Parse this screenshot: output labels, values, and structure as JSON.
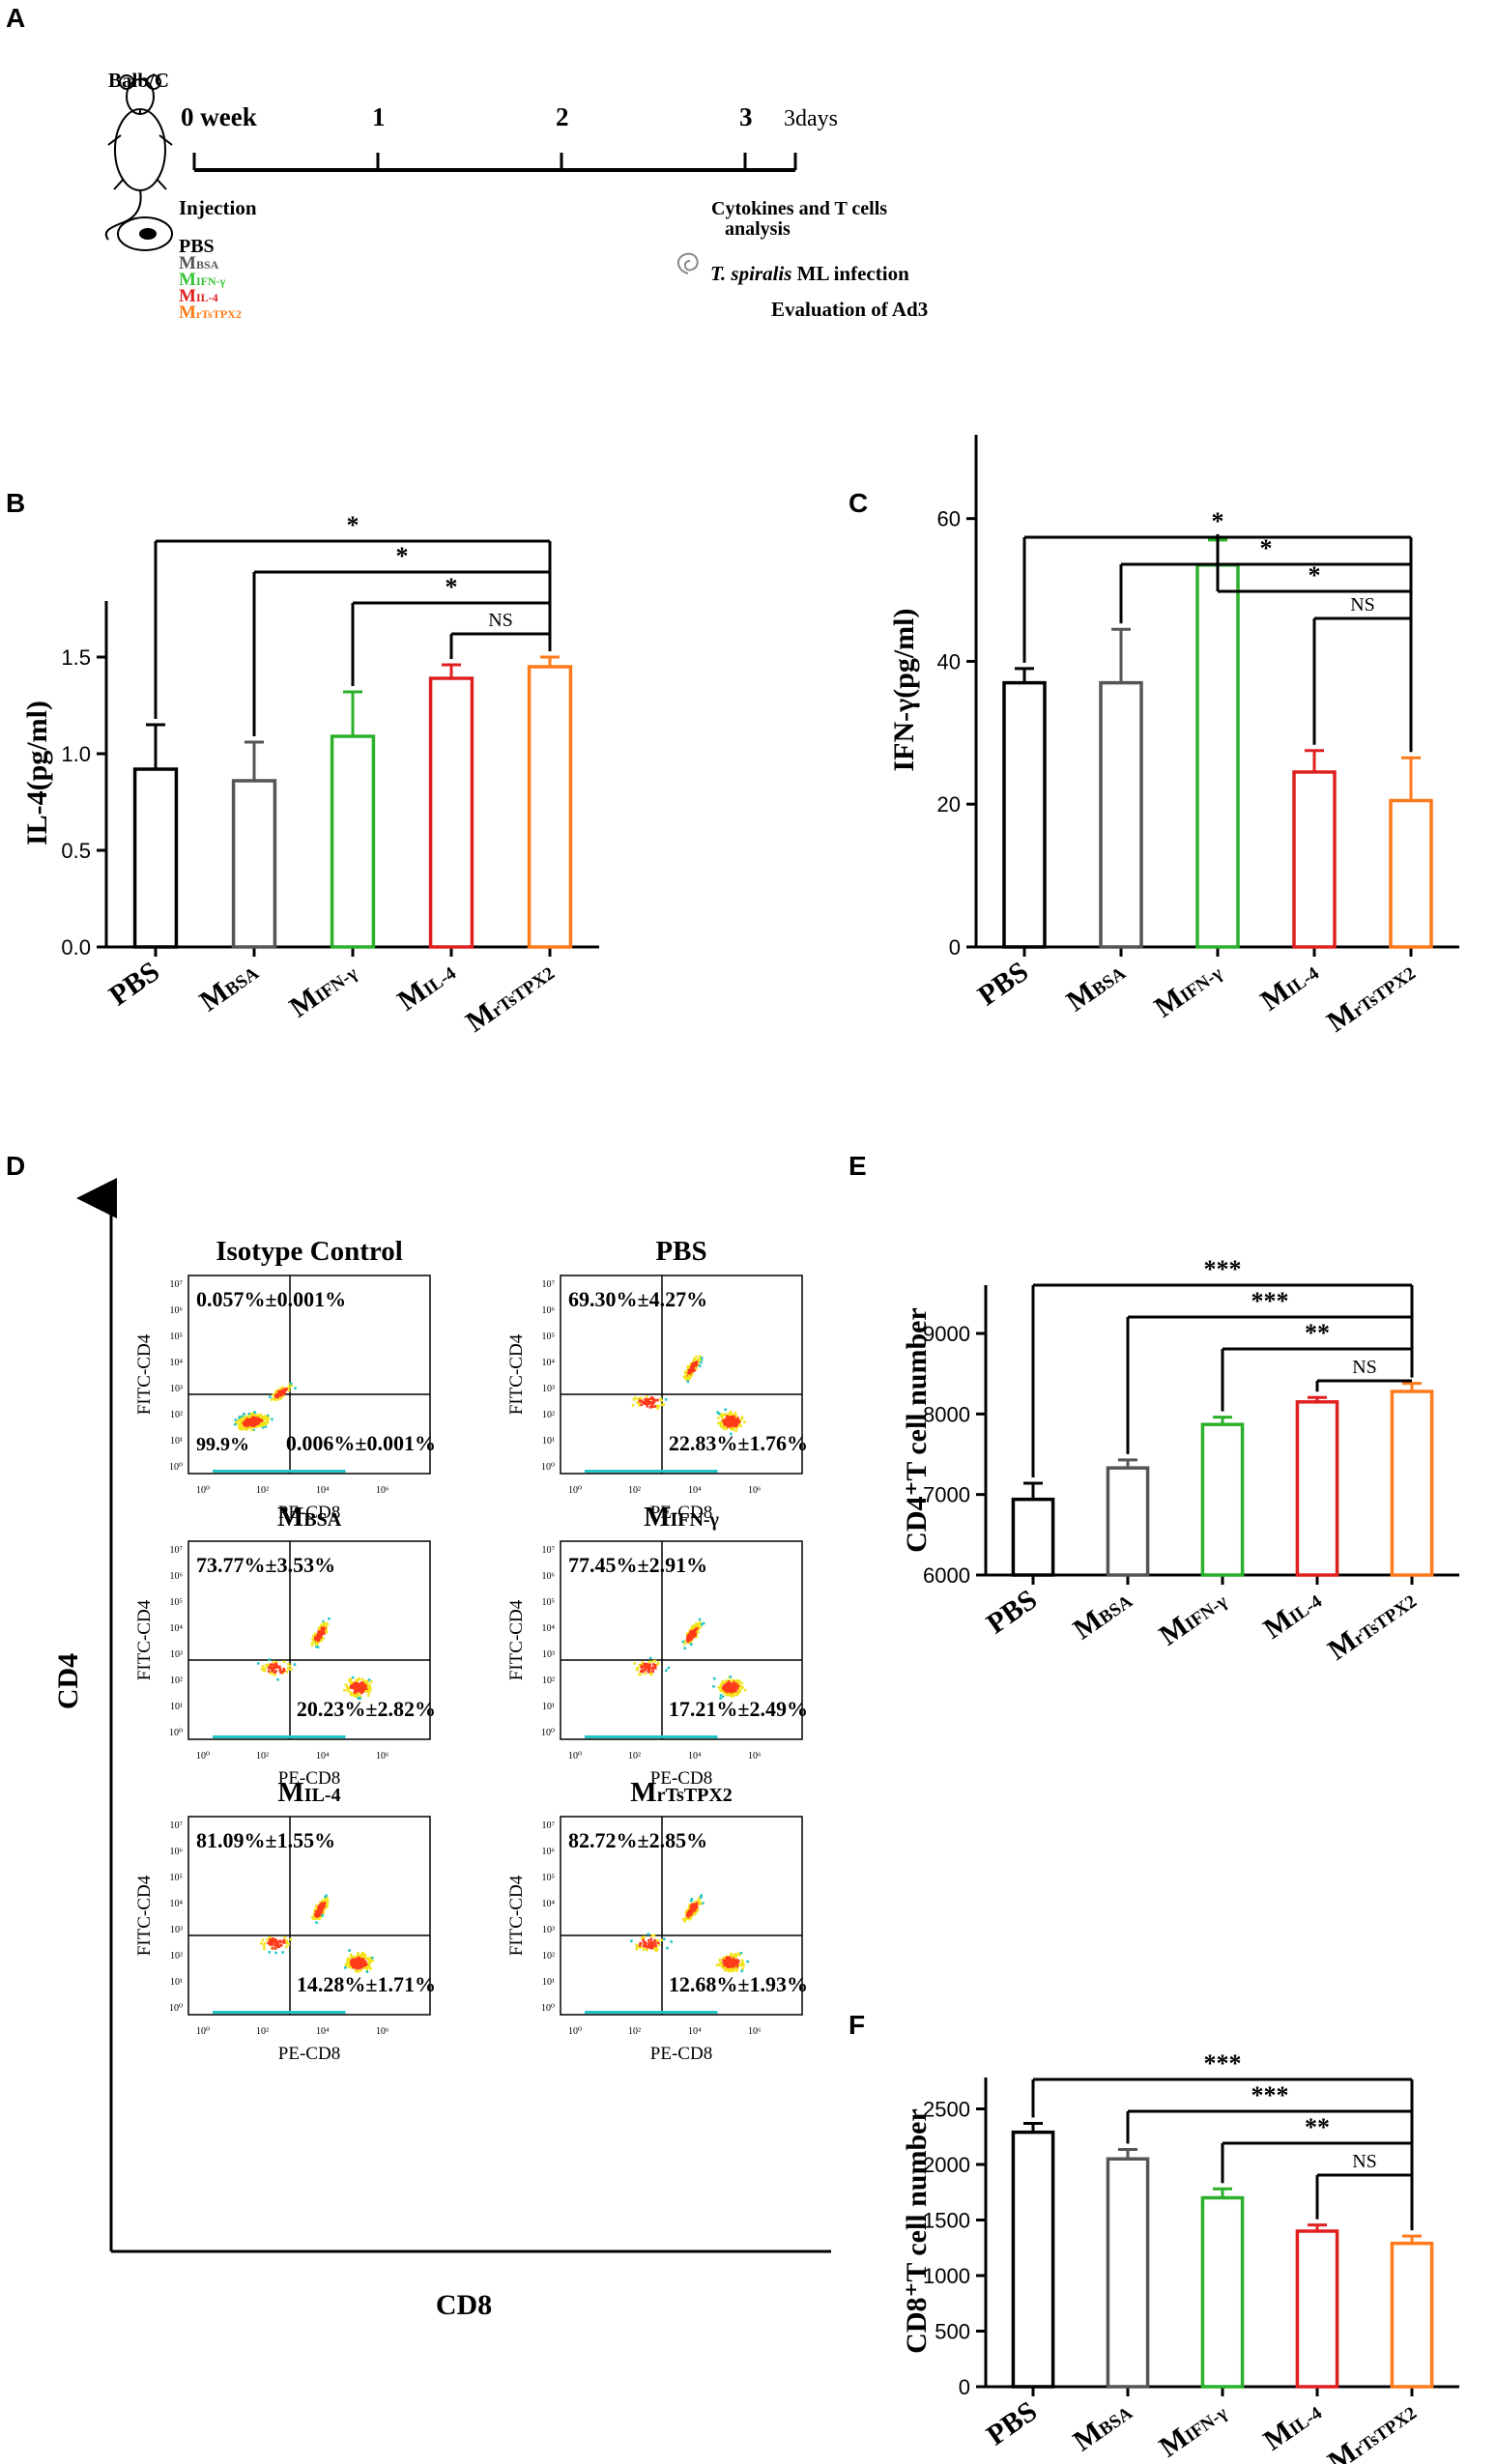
{
  "panel_labels": {
    "a": "A",
    "b": "B",
    "c": "C",
    "d": "D",
    "e": "E",
    "f": "F"
  },
  "colors": {
    "black": "#000000",
    "gray": "#555555",
    "green": "#2bb02b",
    "red": "#e02020",
    "orange": "#ff7a1a",
    "lime": "#35c435",
    "scatter_blue": "#1f2fd6"
  },
  "timeline": {
    "strain": "Balb/C",
    "ticks": [
      {
        "label": "0 week",
        "pos": 0
      },
      {
        "label": "1",
        "pos": 1
      },
      {
        "label": "2",
        "pos": 2
      },
      {
        "label": "3",
        "pos": 3
      },
      {
        "label": "3days",
        "pos": 3.3
      }
    ],
    "injection": "Injection",
    "groups": [
      {
        "prefix": "PBS",
        "sub": "",
        "color": "#000000"
      },
      {
        "prefix": "M",
        "sub": "BSA",
        "color": "#555555"
      },
      {
        "prefix": "M",
        "sub": "IFN-γ",
        "color": "#35c435"
      },
      {
        "prefix": "M",
        "sub": "IL-4",
        "color": "#e02020"
      },
      {
        "prefix": "M",
        "sub": "rTsTPX2",
        "color": "#ff7a1a"
      }
    ],
    "analysis_line1": "Cytokines and T cells",
    "analysis_line2": "analysis",
    "infection_italic": "T. spiralis",
    "infection_rest": " ML infection",
    "evaluation": "Evaluation of Ad3"
  },
  "x_groups": [
    {
      "main": "PBS",
      "sub": ""
    },
    {
      "main": "M",
      "sub": "BSA"
    },
    {
      "main": "M",
      "sub": "IFN-γ"
    },
    {
      "main": "M",
      "sub": "IL-4"
    },
    {
      "main": "M",
      "sub": "rTsTPX2"
    }
  ],
  "chart_data": [
    {
      "id": "B",
      "type": "bar",
      "ylabel": "IL-4(pg/ml)",
      "ylim": [
        0,
        1.8
      ],
      "yticks": [
        "0.0",
        "0.5",
        "1.0",
        "1.5"
      ],
      "values": [
        0.92,
        0.86,
        1.09,
        1.39,
        1.45
      ],
      "errors": [
        0.23,
        0.2,
        0.23,
        0.07,
        0.05
      ],
      "significance": [
        {
          "from": 0,
          "label": "*"
        },
        {
          "from": 1,
          "label": "*"
        },
        {
          "from": 2,
          "label": "*"
        },
        {
          "from": 3,
          "label": "NS"
        }
      ]
    },
    {
      "id": "C",
      "type": "bar",
      "ylabel": "IFN-γ(pg/ml)",
      "ylim": [
        0,
        72
      ],
      "yticks": [
        "0",
        "20",
        "40",
        "60"
      ],
      "values": [
        37,
        37,
        53.5,
        24.5,
        20.5
      ],
      "errors": [
        2,
        7.5,
        3.5,
        3,
        6
      ],
      "significance": [
        {
          "from": 0,
          "label": "*"
        },
        {
          "from": 1,
          "label": "*"
        },
        {
          "from": 2,
          "label": "*"
        },
        {
          "from": 3,
          "label": "NS"
        }
      ]
    },
    {
      "id": "E",
      "type": "bar",
      "ylabel": "CD4⁺T cell number",
      "ylim": [
        6000,
        9600
      ],
      "yticks": [
        "6000",
        "7000",
        "8000",
        "9000"
      ],
      "values": [
        6940,
        7330,
        7870,
        8150,
        8280
      ],
      "errors": [
        200,
        100,
        90,
        55,
        100
      ],
      "significance": [
        {
          "from": 0,
          "label": "***"
        },
        {
          "from": 1,
          "label": "***"
        },
        {
          "from": 2,
          "label": "**"
        },
        {
          "from": 3,
          "label": "NS"
        }
      ]
    },
    {
      "id": "F",
      "type": "bar",
      "ylabel": "CD8⁺T cell number",
      "ylim": [
        0,
        2800
      ],
      "yticks": [
        "0",
        "500",
        "1000",
        "1500",
        "2000",
        "2500"
      ],
      "values": [
        2290,
        2050,
        1700,
        1400,
        1290
      ],
      "errors": [
        80,
        85,
        80,
        55,
        65
      ],
      "significance": [
        {
          "from": 0,
          "label": "***"
        },
        {
          "from": 1,
          "label": "***"
        },
        {
          "from": 2,
          "label": "**"
        },
        {
          "from": 3,
          "label": "NS"
        }
      ]
    }
  ],
  "flow": {
    "y_axis_label": "CD4",
    "x_axis_label": "CD8",
    "x_small": "PE-CD8",
    "y_small": "FITC-CD4",
    "tick_labels": [
      "10⁰",
      "10²",
      "10⁴",
      "10⁶"
    ],
    "y_tick_labels": [
      "10⁰",
      "10¹",
      "10²",
      "10³",
      "10⁴",
      "10⁵",
      "10⁶",
      "10⁷"
    ],
    "plots": [
      {
        "title_main": "Isotype Control",
        "title_sub": "",
        "ul": "0.057%±0.001%",
        "ll": "99.9%",
        "lr": "0.006%±0.001%"
      },
      {
        "title_main": "PBS",
        "title_sub": "",
        "ul": "69.30%±4.27%",
        "ll": "",
        "lr": "22.83%±1.76%"
      },
      {
        "title_main": "M",
        "title_sub": "BSA",
        "ul": "73.77%±3.53%",
        "ll": "",
        "lr": "20.23%±2.82%"
      },
      {
        "title_main": "M",
        "title_sub": "IFN-γ",
        "ul": "77.45%±2.91%",
        "ll": "",
        "lr": "17.21%±2.49%"
      },
      {
        "title_main": "M",
        "title_sub": "IL-4",
        "ul": "81.09%±1.55%",
        "ll": "",
        "lr": "14.28%±1.71%"
      },
      {
        "title_main": "M",
        "title_sub": "rTsTPX2",
        "ul": "82.72%±2.85%",
        "ll": "",
        "lr": "12.68%±1.93%"
      }
    ]
  }
}
